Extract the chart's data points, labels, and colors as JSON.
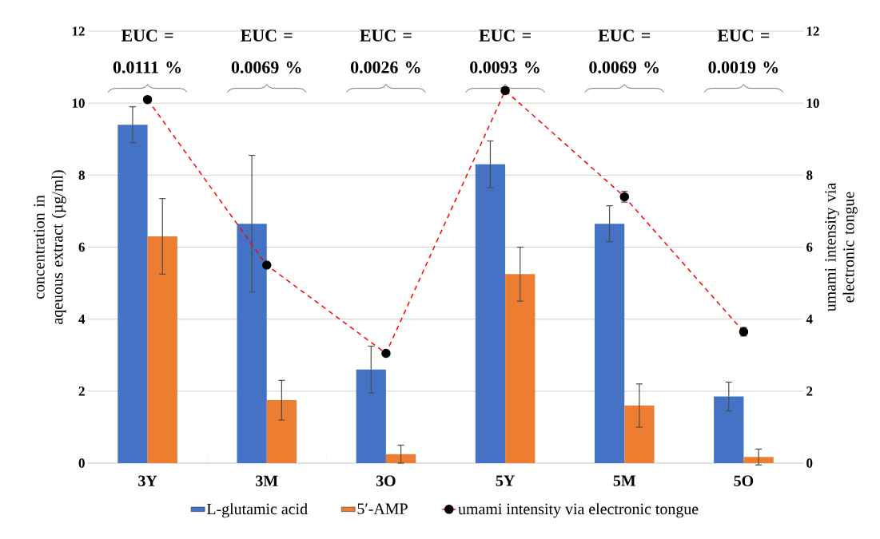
{
  "chart_data": {
    "type": "bar",
    "categories": [
      "3Y",
      "3M",
      "3O",
      "5Y",
      "5M",
      "5O"
    ],
    "ylabel": "concentration in aqeuous extract (µg/ml)",
    "y2label": "umami intensity via electronic tongue",
    "ylim": [
      0,
      12
    ],
    "yticks": [
      0,
      2,
      4,
      6,
      8,
      10,
      12
    ],
    "y2lim": [
      0,
      12
    ],
    "y2ticks": [
      0,
      2,
      4,
      6,
      8,
      10,
      12
    ],
    "grid": "y",
    "legend": "bottom",
    "series": [
      {
        "name": "L-glutamic acid",
        "color": "#4472c4",
        "values": [
          9.4,
          6.65,
          2.6,
          8.3,
          6.65,
          1.85
        ],
        "errors": [
          0.5,
          1.9,
          0.65,
          0.65,
          0.5,
          0.4
        ]
      },
      {
        "name": "5′-AMP",
        "color": "#ed7d31",
        "values": [
          6.3,
          1.75,
          0.25,
          5.25,
          1.6,
          0.17
        ],
        "errors": [
          1.05,
          0.55,
          0.25,
          0.75,
          0.6,
          0.22
        ]
      },
      {
        "name": "umami intensity via electronic tongue",
        "type": "line",
        "axis": "y2",
        "color": "#ff0000",
        "line_style": "dashed",
        "marker": "circle",
        "values": [
          10.1,
          5.5,
          3.05,
          10.35,
          7.4,
          3.65
        ],
        "errors": [
          null,
          null,
          null,
          null,
          0.15,
          0.12
        ]
      }
    ],
    "annotations": [
      "EUC = 0.0111 %",
      "EUC = 0.0069 %",
      "EUC = 0.0026 %",
      "EUC = 0.0093 %",
      "EUC = 0.0069 %",
      "EUC = 0.0019 %"
    ]
  }
}
